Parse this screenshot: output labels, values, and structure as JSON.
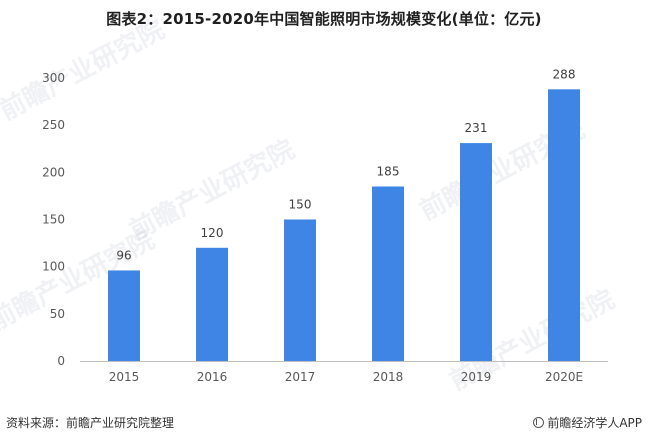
{
  "title": "图表2：2015-2020年中国智能照明市场规模变化(单位：亿元)",
  "footer": {
    "source": "资料来源：前瞻产业研究院整理",
    "brand": "前瞻经济学人APP",
    "brand_icon": "qianzhan-logo-icon"
  },
  "watermark_text": "前瞻产业研究院",
  "colors": {
    "bar": "#3f85e6",
    "axis": "#bfbfbf",
    "tick_text": "#595959"
  },
  "chart_data": {
    "type": "bar",
    "categories": [
      "2015",
      "2016",
      "2017",
      "2018",
      "2019",
      "2020E"
    ],
    "values": [
      96,
      120,
      150,
      185,
      231,
      288
    ],
    "data_labels": [
      "96",
      "120",
      "150",
      "185",
      "231",
      "288"
    ],
    "yticks": [
      "0",
      "50",
      "100",
      "150",
      "200",
      "250",
      "300"
    ],
    "ylim": [
      0,
      300
    ],
    "xlabel": "",
    "ylabel": "",
    "grid": false,
    "legend": "none"
  }
}
